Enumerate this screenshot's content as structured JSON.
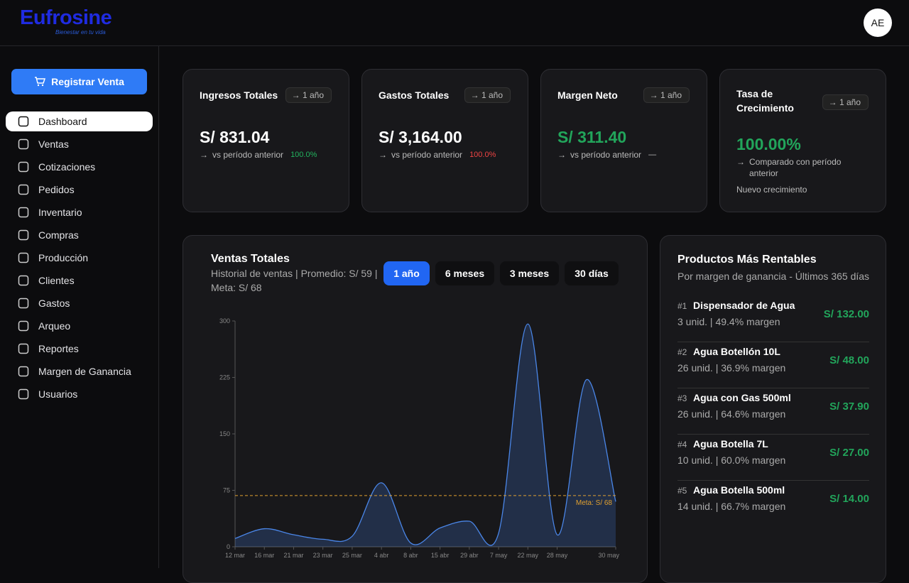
{
  "header": {
    "logo": "Eufrosine",
    "tagline": "Bienestar en tu vida",
    "avatar": "AE"
  },
  "sidebar": {
    "button": "Registrar Venta",
    "active": 0,
    "menu": [
      "Dashboard",
      "Ventas",
      "Cotizaciones",
      "Pedidos",
      "Inventario",
      "Compras",
      "Producción",
      "Clientes",
      "Gastos",
      "Arqueo",
      "Reportes",
      "Margen de Ganancia",
      "Usuarios"
    ]
  },
  "cards": [
    {
      "title": "Ingresos Totales",
      "period": "1 año",
      "value": "S/ 831.04",
      "comparison": "vs período anterior",
      "change": "100.0%",
      "tone": "up"
    },
    {
      "title": "Gastos Totales",
      "period": "1 año",
      "value": "S/ 3,164.00",
      "comparison": "vs período anterior",
      "change": "100.0%",
      "tone": "down"
    },
    {
      "title": "Margen Neto",
      "period": "1 año",
      "value": "S/ 311.40",
      "comparison": "vs período anterior",
      "change": "—",
      "tone": "flat"
    },
    {
      "title": "Tasa de Crecimiento",
      "period": "1 año",
      "value": "100.00%",
      "comparison": "Comparado con período anterior",
      "note": "Nuevo crecimiento",
      "tone": "up"
    }
  ],
  "range_tabs": {
    "options": [
      "1 año",
      "6 meses",
      "3 meses",
      "30 días"
    ],
    "active": 0
  },
  "chart_data": {
    "type": "line",
    "title": "Ventas Totales",
    "subtitle": "Historial de ventas | Promedio: S/ 59 | Meta: S/ 68",
    "categories": [
      "12 mar",
      "16 mar",
      "21 mar",
      "23 mar",
      "25 mar",
      "4 abr",
      "8 abr",
      "15 abr",
      "29 abr",
      "7 may",
      "22 may",
      "28 may",
      null,
      "30 may"
    ],
    "values": [
      11,
      24,
      16,
      10,
      14,
      85,
      5,
      25,
      34,
      18,
      296,
      16,
      222,
      60
    ],
    "color": "#4a86e8",
    "ylim": [
      0,
      300
    ],
    "yticks": [
      0,
      75,
      150,
      225,
      300
    ],
    "goal": {
      "value": 68,
      "label": "Meta: S/ 68",
      "color": "#e0a030"
    }
  },
  "products": {
    "title": "Productos Más Rentables",
    "subtitle": "Por margen de ganancia - Últimos 365 días",
    "items": [
      {
        "rank": "#1",
        "name": "Dispensador de Agua",
        "detail": "3 unid. | 49.4% margen",
        "value": "S/ 132.00"
      },
      {
        "rank": "#2",
        "name": "Agua Botellón 10L",
        "detail": "26 unid. | 36.9% margen",
        "value": "S/ 48.00"
      },
      {
        "rank": "#3",
        "name": "Agua con Gas 500ml",
        "detail": "26 unid. | 64.6% margen",
        "value": "S/ 37.90"
      },
      {
        "rank": "#4",
        "name": "Agua Botella 7L",
        "detail": "10 unid. | 60.0% margen",
        "value": "S/ 27.00"
      },
      {
        "rank": "#5",
        "name": "Agua Botella 500ml",
        "detail": "14 unid. | 66.7% margen",
        "value": "S/ 14.00"
      }
    ]
  }
}
